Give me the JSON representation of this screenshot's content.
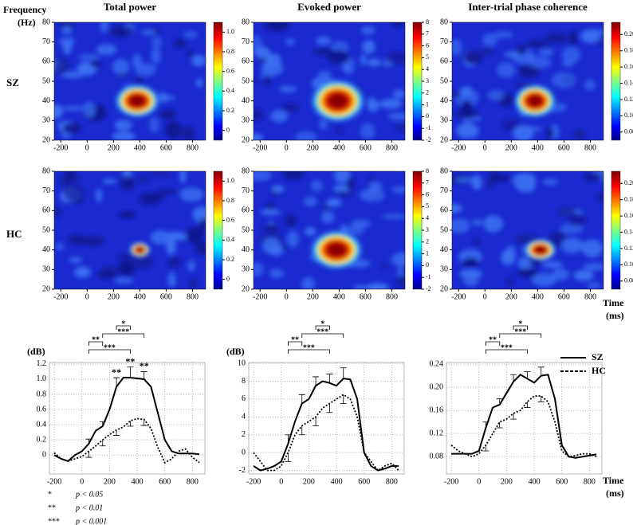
{
  "labels": {
    "frequency": "Frequency",
    "hz": "(Hz)",
    "time": "Time",
    "ms": "(ms)",
    "sz": "SZ",
    "hc": "HC"
  },
  "significance": [
    {
      "stars": "*",
      "text": "p < 0.05"
    },
    {
      "stars": "**",
      "text": "p < 0.01"
    },
    {
      "stars": "***",
      "text": "p < 0.001"
    }
  ],
  "chart_data": [
    {
      "type": "heatmap",
      "title": "Total power",
      "xlim": [
        -250,
        900
      ],
      "xticks": [
        -200,
        0,
        200,
        400,
        600,
        800
      ],
      "ylim": [
        20,
        80
      ],
      "yticks": [
        20,
        30,
        40,
        50,
        60,
        70,
        80
      ],
      "colorbar": {
        "lim": [
          -0.1,
          1.1
        ],
        "ticks": [
          0,
          0.2,
          0.4,
          0.6,
          0.8,
          {
            "value": 1,
            "label": "1.0"
          }
        ]
      }
    },
    {
      "type": "heatmap",
      "title": "Evoked power",
      "xlim": [
        -250,
        900
      ],
      "xticks": [
        -200,
        0,
        200,
        400,
        600,
        800
      ],
      "ylim": [
        20,
        80
      ],
      "yticks": [
        20,
        30,
        40,
        50,
        60,
        70,
        80
      ],
      "colorbar": {
        "lim": [
          -2,
          8
        ],
        "ticks": [
          -2,
          -1,
          0,
          1,
          2,
          3,
          4,
          5,
          6,
          7,
          8
        ]
      }
    },
    {
      "type": "heatmap",
      "title": "Inter-trial phase coherence",
      "xlim": [
        -250,
        900
      ],
      "xticks": [
        -200,
        0,
        200,
        400,
        600,
        800
      ],
      "ylim": [
        20,
        80
      ],
      "yticks": [
        20,
        30,
        40,
        50,
        60,
        70,
        80
      ],
      "colorbar": {
        "lim": [
          0.07,
          0.215
        ],
        "ticks": [
          0.08,
          {
            "value": 0.1,
            "label": "0.10"
          },
          0.12,
          0.14,
          0.16,
          0.18,
          {
            "value": 0.2,
            "label": "0.20"
          }
        ]
      }
    },
    {
      "type": "heatmap",
      "xlim": [
        -250,
        900
      ],
      "xticks": [
        -200,
        0,
        200,
        400,
        600,
        800
      ],
      "ylim": [
        20,
        80
      ],
      "yticks": [
        20,
        30,
        40,
        50,
        60,
        70,
        80
      ],
      "colorbar": {
        "lim": [
          -0.1,
          1.1
        ],
        "ticks": [
          0,
          0.2,
          0.4,
          0.6,
          0.8,
          {
            "value": 1,
            "label": "1.0"
          }
        ]
      }
    },
    {
      "type": "heatmap",
      "xlim": [
        -250,
        900
      ],
      "xticks": [
        -200,
        0,
        200,
        400,
        600,
        800
      ],
      "ylim": [
        20,
        80
      ],
      "yticks": [
        20,
        30,
        40,
        50,
        60,
        70,
        80
      ],
      "colorbar": {
        "lim": [
          -2,
          8
        ],
        "ticks": [
          -2,
          -1,
          0,
          1,
          2,
          3,
          4,
          5,
          6,
          7,
          8
        ]
      }
    },
    {
      "type": "heatmap",
      "xlim": [
        -250,
        900
      ],
      "xticks": [
        -200,
        0,
        200,
        400,
        600,
        800
      ],
      "ylim": [
        20,
        80
      ],
      "yticks": [
        20,
        30,
        40,
        50,
        60,
        70,
        80
      ],
      "colorbar": {
        "lim": [
          0.07,
          0.215
        ],
        "ticks": [
          0.08,
          {
            "value": 0.1,
            "label": "0.10"
          },
          0.12,
          0.14,
          0.16,
          0.18,
          {
            "value": 0.2,
            "label": "0.20"
          }
        ]
      }
    },
    {
      "type": "line",
      "y_label": "(dB)",
      "grid": true,
      "x": [
        -200,
        -150,
        -100,
        -50,
        0,
        50,
        100,
        150,
        200,
        250,
        300,
        350,
        400,
        450,
        500,
        550,
        600,
        650,
        700,
        750,
        800,
        850
      ],
      "xlim": [
        -235,
        890
      ],
      "xticks": [
        -200,
        0,
        200,
        400,
        600,
        800
      ],
      "ylim": [
        -0.25,
        1.22
      ],
      "yticks": [
        0,
        0.2,
        0.4,
        0.6,
        0.8,
        {
          "value": 1,
          "label": "1.0"
        },
        1.2
      ],
      "series": [
        {
          "name": "SZ",
          "color": "#000000",
          "dash": "solid",
          "error_direction": "up",
          "values": [
            0,
            -0.05,
            -0.08,
            0,
            0.05,
            0.15,
            0.32,
            0.38,
            0.6,
            0.9,
            1.02,
            1.02,
            1.01,
            1,
            0.9,
            0.55,
            0.2,
            0.05,
            0.02,
            0.02,
            0.02,
            0.01
          ],
          "errors": [
            null,
            null,
            null,
            null,
            null,
            0.06,
            null,
            0.06,
            null,
            0.12,
            null,
            0.14,
            null,
            0.1,
            null,
            null,
            null,
            null,
            null,
            null,
            null,
            null
          ]
        },
        {
          "name": "HC",
          "color": "#000000",
          "dash": "dotted",
          "error_direction": "down",
          "values": [
            0.03,
            -0.05,
            -0.08,
            -0.05,
            -0.02,
            0.05,
            0.12,
            0.2,
            0.27,
            0.33,
            0.37,
            0.45,
            0.48,
            0.47,
            0.35,
            0.1,
            -0.1,
            -0.05,
            0.05,
            0.08,
            -0.03,
            -0.1
          ],
          "errors": [
            null,
            null,
            null,
            null,
            null,
            0.08,
            null,
            0.08,
            null,
            0.07,
            null,
            0.07,
            null,
            0.08,
            null,
            null,
            null,
            null,
            null,
            null,
            null,
            null
          ]
        }
      ],
      "point_labels": [
        {
          "x": 250,
          "label": "**"
        },
        {
          "x": 350,
          "label": "**"
        },
        {
          "x": 450,
          "label": "**"
        }
      ],
      "brackets": [
        {
          "label": "*",
          "from": 250,
          "to": 350
        },
        {
          "label": "***",
          "from": 150,
          "to": 450
        },
        {
          "label": "**",
          "from": 50,
          "to": 150
        },
        {
          "label": "***",
          "from": 50,
          "to": 350
        }
      ]
    },
    {
      "type": "line",
      "y_label": "(dB)",
      "grid": true,
      "x": [
        -200,
        -150,
        -100,
        -50,
        0,
        50,
        100,
        150,
        200,
        250,
        300,
        350,
        400,
        450,
        500,
        550,
        600,
        650,
        700,
        750,
        800,
        850
      ],
      "xlim": [
        -235,
        890
      ],
      "xticks": [
        -200,
        0,
        200,
        400,
        600,
        800
      ],
      "ylim": [
        -2.4,
        10.1
      ],
      "yticks": [
        -2,
        0,
        2,
        4,
        6,
        8,
        10
      ],
      "series": [
        {
          "color": "#000000",
          "dash": "solid",
          "error_direction": "up",
          "values": [
            -1.5,
            -2,
            -1.8,
            -1.5,
            -1,
            1,
            3.5,
            5.5,
            6,
            7.5,
            8,
            7.8,
            7.5,
            8.3,
            8.2,
            6,
            0,
            -1.5,
            -2,
            -1.8,
            -1.5,
            -1.5
          ],
          "errors": [
            null,
            null,
            null,
            null,
            null,
            1,
            null,
            1,
            null,
            1,
            null,
            1,
            null,
            1.2,
            null,
            null,
            null,
            null,
            null,
            null,
            null,
            null
          ]
        },
        {
          "color": "#000000",
          "dash": "dotted",
          "error_direction": "down",
          "values": [
            0,
            -1,
            -2,
            -2,
            -1.5,
            0,
            2,
            3,
            3.5,
            4,
            5,
            5.5,
            6,
            6.5,
            6,
            4,
            0,
            -1,
            -2,
            -1.5,
            -1.2,
            -2
          ],
          "errors": [
            null,
            null,
            null,
            null,
            null,
            1,
            null,
            1,
            null,
            1,
            null,
            1,
            null,
            1,
            null,
            null,
            null,
            null,
            null,
            null,
            null,
            null
          ]
        }
      ],
      "brackets": [
        {
          "label": "*",
          "from": 250,
          "to": 350
        },
        {
          "label": "***",
          "from": 150,
          "to": 450
        },
        {
          "label": "**",
          "from": 50,
          "to": 150
        },
        {
          "label": "***",
          "from": 50,
          "to": 350
        }
      ]
    },
    {
      "type": "line",
      "grid": true,
      "x": [
        -200,
        -150,
        -100,
        -50,
        0,
        50,
        100,
        150,
        200,
        250,
        300,
        350,
        400,
        450,
        500,
        550,
        600,
        650,
        700,
        750,
        800,
        850
      ],
      "xlim": [
        -235,
        890
      ],
      "xticks": [
        -200,
        0,
        200,
        400,
        600,
        800
      ],
      "ylim": [
        0.05,
        0.243
      ],
      "yticks": [
        0.08,
        0.12,
        0.16,
        {
          "value": 0.2,
          "label": "0.20"
        },
        0.24
      ],
      "series": [
        {
          "color": "#000000",
          "dash": "solid",
          "error_direction": "up",
          "values": [
            0.085,
            0.085,
            0.085,
            0.085,
            0.09,
            0.13,
            0.165,
            0.17,
            0.19,
            0.21,
            0.222,
            0.215,
            0.208,
            0.22,
            0.222,
            0.18,
            0.1,
            0.08,
            0.078,
            0.08,
            0.082,
            0.084
          ],
          "errors": [
            null,
            null,
            null,
            null,
            null,
            0.01,
            null,
            0.01,
            null,
            0.012,
            null,
            0.012,
            null,
            0.015,
            null,
            null,
            null,
            null,
            null,
            null,
            null,
            null
          ]
        },
        {
          "color": "#000000",
          "dash": "dotted",
          "error_direction": "down",
          "values": [
            0.1,
            0.09,
            0.085,
            0.08,
            0.085,
            0.1,
            0.12,
            0.14,
            0.145,
            0.155,
            0.16,
            0.175,
            0.185,
            0.185,
            0.175,
            0.14,
            0.09,
            0.08,
            0.082,
            0.085,
            0.085,
            0.08
          ],
          "errors": [
            null,
            null,
            null,
            null,
            null,
            0.01,
            null,
            0.01,
            null,
            0.01,
            null,
            0.01,
            null,
            0.01,
            null,
            null,
            null,
            null,
            null,
            null,
            null,
            null
          ]
        }
      ],
      "brackets": [
        {
          "label": "*",
          "from": 250,
          "to": 350
        },
        {
          "label": "***",
          "from": 150,
          "to": 450
        },
        {
          "label": "**",
          "from": 50,
          "to": 150
        },
        {
          "label": "***",
          "from": 50,
          "to": 350
        }
      ]
    }
  ]
}
